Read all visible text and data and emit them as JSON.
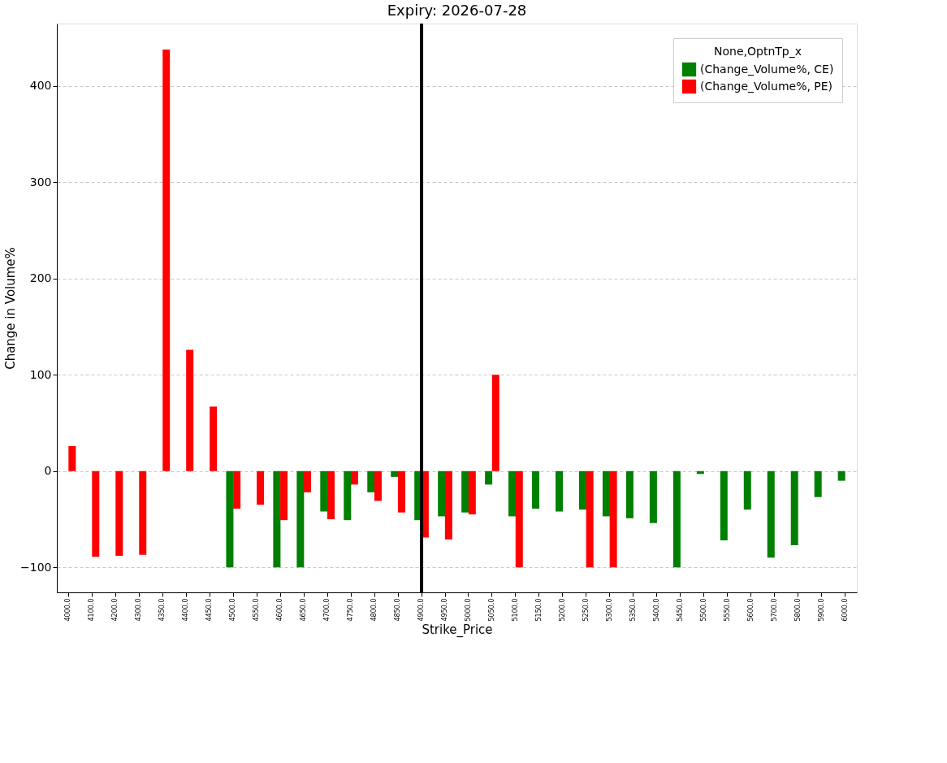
{
  "chart_data": {
    "type": "bar",
    "title": "Expiry: 2026-07-28",
    "xlabel": "Strike_Price",
    "ylabel": "Change in Volume%",
    "legend_title": "None,OptnTp_x",
    "categories": [
      "4000.0",
      "4100.0",
      "4200.0",
      "4300.0",
      "4350.0",
      "4400.0",
      "4450.0",
      "4500.0",
      "4550.0",
      "4600.0",
      "4650.0",
      "4700.0",
      "4750.0",
      "4800.0",
      "4850.0",
      "4900.0",
      "4950.0",
      "5000.0",
      "5050.0",
      "5100.0",
      "5150.0",
      "5200.0",
      "5250.0",
      "5300.0",
      "5350.0",
      "5400.0",
      "5450.0",
      "5500.0",
      "5550.0",
      "5600.0",
      "5700.0",
      "5800.0",
      "5900.0",
      "6000.0"
    ],
    "series": [
      {
        "name": "(Change_Volume%, CE)",
        "color": "#008000",
        "values": [
          null,
          null,
          null,
          null,
          null,
          null,
          null,
          -100,
          null,
          -100,
          -100,
          -42,
          -51,
          -22,
          -6,
          -51,
          -47,
          -43,
          -14,
          -47,
          -39,
          -42,
          -40,
          -47,
          -49,
          -54,
          -100,
          -3,
          -72,
          -40,
          -90,
          -77,
          -27,
          -10
        ]
      },
      {
        "name": "(Change_Volume%, PE)",
        "color": "#ff0000",
        "values": [
          26,
          -89,
          -88,
          -87,
          438,
          126,
          67,
          -39,
          -35,
          -51,
          -22,
          -50,
          -14,
          -31,
          -43,
          -69,
          -71,
          -45,
          100,
          -100,
          null,
          null,
          -100,
          -100,
          null,
          null,
          null,
          null,
          null,
          null,
          null,
          null,
          null,
          null
        ]
      }
    ],
    "ylim": [
      -126,
      465
    ],
    "yticks": [
      -100,
      0,
      100,
      200,
      300,
      400
    ],
    "grid": "y",
    "legend": "top right",
    "ref_lines": [
      {
        "axis": "x",
        "value": "4900.0",
        "color": "#000000"
      }
    ]
  }
}
